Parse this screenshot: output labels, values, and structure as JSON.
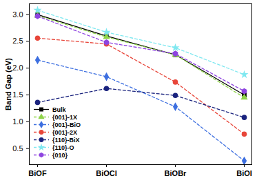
{
  "chart_data": {
    "type": "line",
    "y_label": "Band Gap (eV)",
    "categories": [
      "BiOF",
      "BiOCl",
      "BiOBr",
      "BiOI"
    ],
    "ylim": [
      0.2,
      3.2
    ],
    "yticks": [
      0.5,
      {
        "value": 1,
        "label": "1.0"
      },
      1.5,
      {
        "value": 2,
        "label": "2.0"
      },
      2.5,
      {
        "value": 3,
        "label": "3.0"
      }
    ],
    "grid": false,
    "legend": "lower left",
    "series": [
      {
        "name": "Bulk",
        "color": "#000000",
        "marker": "square",
        "line_style": "solid",
        "values": [
          3.0,
          2.6,
          2.25,
          1.5
        ]
      },
      {
        "name": "{001}-1X",
        "color": "#8fd44a",
        "marker": "triangle",
        "line_style": "dashed",
        "values": [
          2.98,
          2.58,
          2.25,
          1.45
        ]
      },
      {
        "name": "{001}-BiO",
        "color": "#3d6fe0",
        "marker": "diamond",
        "line_style": "dashed",
        "values": [
          2.15,
          1.84,
          1.28,
          0.27
        ]
      },
      {
        "name": "{001}-2X",
        "color": "#e8463a",
        "marker": "circle",
        "line_style": "dashed",
        "values": [
          2.56,
          2.45,
          1.74,
          0.77
        ]
      },
      {
        "name": "{110}-BiX",
        "color": "#1a237e",
        "marker": "circle",
        "line_style": "dashed",
        "values": [
          1.36,
          1.62,
          1.49,
          1.08
        ]
      },
      {
        "name": "{110}-O",
        "color": "#7fe8f0",
        "marker": "star",
        "line_style": "dashed",
        "values": [
          3.08,
          2.67,
          2.38,
          1.88
        ]
      },
      {
        "name": "{010}",
        "color": "#8e44e0",
        "marker": "hexagon",
        "line_style": "dashed",
        "values": [
          2.97,
          2.48,
          2.27,
          1.57
        ]
      }
    ]
  }
}
